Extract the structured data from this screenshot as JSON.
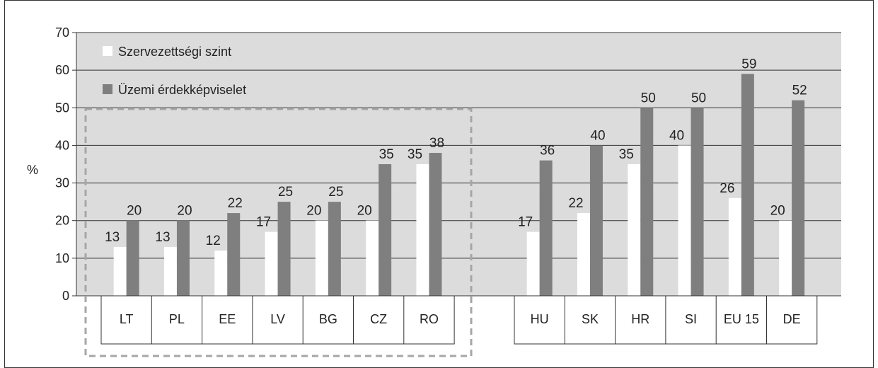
{
  "chart_data": {
    "type": "bar",
    "ylabel": "%",
    "ylim": [
      0,
      70
    ],
    "yticks": [
      0,
      10,
      20,
      30,
      40,
      50,
      60,
      70
    ],
    "grid": true,
    "legend_position": "top-left",
    "groups": [
      {
        "categories": [
          "LT",
          "PL",
          "EE",
          "LV",
          "BG",
          "CZ",
          "RO"
        ],
        "highlighted": true
      },
      {
        "categories": [
          "HU",
          "SK",
          "HR",
          "SI",
          "EU 15",
          "DE"
        ],
        "highlighted": false
      }
    ],
    "categories": [
      "LT",
      "PL",
      "EE",
      "LV",
      "BG",
      "CZ",
      "RO",
      "HU",
      "SK",
      "HR",
      "SI",
      "EU 15",
      "DE"
    ],
    "series": [
      {
        "name": "Szervezettségi szint",
        "color": "#ffffff",
        "values": [
          13,
          13,
          12,
          17,
          20,
          20,
          35,
          17,
          22,
          35,
          40,
          26,
          20
        ],
        "labels": [
          "13",
          "13",
          "12",
          "17",
          "20",
          "20",
          "35",
          "17",
          "22",
          "35",
          "40",
          "26",
          "20"
        ]
      },
      {
        "name": "Üzemi érdekképviselet",
        "color": "#7f7f7f",
        "values": [
          20,
          20,
          22,
          25,
          25,
          35,
          38,
          36,
          40,
          50,
          50,
          59,
          52
        ],
        "labels": [
          "20",
          "20",
          "22",
          "25",
          "25",
          "35",
          "38",
          "36",
          "40",
          "50",
          "50",
          "59",
          "52"
        ]
      }
    ],
    "plot_background": "#dcdcdc",
    "highlight_border_color": "#a6a6a6"
  }
}
